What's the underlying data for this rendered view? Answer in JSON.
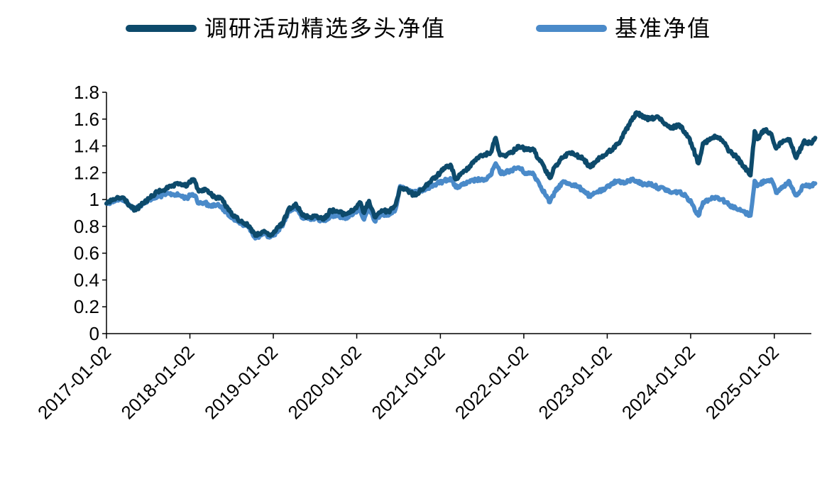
{
  "chart_data": {
    "type": "line",
    "title": "",
    "xlabel": "",
    "ylabel": "",
    "ylim": [
      0,
      1.8
    ],
    "yticks": [
      "0",
      "0.2",
      "0.4",
      "0.6",
      "0.8",
      "1",
      "1.2",
      "1.4",
      "1.6",
      "1.8"
    ],
    "xlim": [
      "2017-01-02",
      "2025-06-30"
    ],
    "xticks": [
      "2017-01-02",
      "2018-01-02",
      "2019-01-02",
      "2020-01-02",
      "2021-01-02",
      "2022-01-02",
      "2023-01-02",
      "2024-01-02",
      "2025-01-02"
    ],
    "grid": false,
    "legend_position": "top",
    "series": [
      {
        "name": "调研活动精选多头净值",
        "color": "#0d4a6b",
        "points": [
          [
            "2017-01-02",
            0.97
          ],
          [
            "2017-02-15",
            1.01
          ],
          [
            "2017-03-20",
            1.01
          ],
          [
            "2017-04-15",
            0.95
          ],
          [
            "2017-05-10",
            0.92
          ],
          [
            "2017-06-10",
            0.97
          ],
          [
            "2017-07-10",
            1.01
          ],
          [
            "2017-08-15",
            1.06
          ],
          [
            "2017-09-20",
            1.08
          ],
          [
            "2017-10-20",
            1.1
          ],
          [
            "2017-11-20",
            1.12
          ],
          [
            "2017-12-20",
            1.1
          ],
          [
            "2018-01-10",
            1.15
          ],
          [
            "2018-01-25",
            1.13
          ],
          [
            "2018-02-10",
            1.06
          ],
          [
            "2018-03-10",
            1.08
          ],
          [
            "2018-03-25",
            1.05
          ],
          [
            "2018-04-20",
            1.02
          ],
          [
            "2018-05-20",
            1.01
          ],
          [
            "2018-06-20",
            0.92
          ],
          [
            "2018-07-20",
            0.87
          ],
          [
            "2018-08-20",
            0.83
          ],
          [
            "2018-09-20",
            0.8
          ],
          [
            "2018-10-15",
            0.73
          ],
          [
            "2018-11-15",
            0.76
          ],
          [
            "2018-12-20",
            0.73
          ],
          [
            "2019-01-02",
            0.75
          ],
          [
            "2019-02-15",
            0.83
          ],
          [
            "2019-03-10",
            0.93
          ],
          [
            "2019-04-10",
            0.97
          ],
          [
            "2019-05-10",
            0.88
          ],
          [
            "2019-06-10",
            0.87
          ],
          [
            "2019-07-10",
            0.88
          ],
          [
            "2019-08-10",
            0.85
          ],
          [
            "2019-09-10",
            0.92
          ],
          [
            "2019-10-10",
            0.91
          ],
          [
            "2019-11-10",
            0.89
          ],
          [
            "2019-12-20",
            0.92
          ],
          [
            "2020-01-15",
            0.98
          ],
          [
            "2020-02-03",
            0.9
          ],
          [
            "2020-02-25",
            0.99
          ],
          [
            "2020-03-20",
            0.87
          ],
          [
            "2020-04-20",
            0.92
          ],
          [
            "2020-05-20",
            0.91
          ],
          [
            "2020-06-20",
            0.96
          ],
          [
            "2020-07-10",
            1.09
          ],
          [
            "2020-08-10",
            1.07
          ],
          [
            "2020-09-10",
            1.03
          ],
          [
            "2020-10-10",
            1.07
          ],
          [
            "2020-11-10",
            1.12
          ],
          [
            "2020-12-20",
            1.18
          ],
          [
            "2021-01-20",
            1.23
          ],
          [
            "2021-02-15",
            1.26
          ],
          [
            "2021-03-10",
            1.15
          ],
          [
            "2021-04-10",
            1.2
          ],
          [
            "2021-05-10",
            1.25
          ],
          [
            "2021-06-10",
            1.31
          ],
          [
            "2021-07-10",
            1.33
          ],
          [
            "2021-08-10",
            1.35
          ],
          [
            "2021-09-01",
            1.46
          ],
          [
            "2021-09-20",
            1.33
          ],
          [
            "2021-10-10",
            1.33
          ],
          [
            "2021-11-10",
            1.35
          ],
          [
            "2021-12-10",
            1.4
          ],
          [
            "2022-01-15",
            1.37
          ],
          [
            "2022-02-10",
            1.38
          ],
          [
            "2022-03-10",
            1.3
          ],
          [
            "2022-04-26",
            1.16
          ],
          [
            "2022-05-20",
            1.25
          ],
          [
            "2022-06-20",
            1.31
          ],
          [
            "2022-07-20",
            1.35
          ],
          [
            "2022-08-20",
            1.33
          ],
          [
            "2022-09-20",
            1.3
          ],
          [
            "2022-10-20",
            1.24
          ],
          [
            "2022-11-20",
            1.3
          ],
          [
            "2022-12-20",
            1.33
          ],
          [
            "2023-01-20",
            1.37
          ],
          [
            "2023-02-20",
            1.42
          ],
          [
            "2023-03-20",
            1.5
          ],
          [
            "2023-04-20",
            1.59
          ],
          [
            "2023-05-10",
            1.65
          ],
          [
            "2023-06-10",
            1.61
          ],
          [
            "2023-07-10",
            1.6
          ],
          [
            "2023-08-10",
            1.62
          ],
          [
            "2023-09-10",
            1.56
          ],
          [
            "2023-10-10",
            1.53
          ],
          [
            "2023-11-10",
            1.56
          ],
          [
            "2023-12-15",
            1.49
          ],
          [
            "2024-01-05",
            1.42
          ],
          [
            "2024-02-05",
            1.27
          ],
          [
            "2024-02-25",
            1.42
          ],
          [
            "2024-03-20",
            1.44
          ],
          [
            "2024-04-20",
            1.47
          ],
          [
            "2024-05-20",
            1.44
          ],
          [
            "2024-06-20",
            1.36
          ],
          [
            "2024-07-20",
            1.32
          ],
          [
            "2024-08-20",
            1.25
          ],
          [
            "2024-09-20",
            1.18
          ],
          [
            "2024-10-08",
            1.51
          ],
          [
            "2024-10-20",
            1.45
          ],
          [
            "2024-11-20",
            1.52
          ],
          [
            "2024-12-20",
            1.49
          ],
          [
            "2025-01-10",
            1.38
          ],
          [
            "2025-02-10",
            1.44
          ],
          [
            "2025-03-10",
            1.45
          ],
          [
            "2025-04-08",
            1.31
          ],
          [
            "2025-05-10",
            1.43
          ],
          [
            "2025-06-10",
            1.42
          ],
          [
            "2025-06-30",
            1.46
          ]
        ]
      },
      {
        "name": "基准净值",
        "color": "#4a8ac9",
        "points": [
          [
            "2017-01-02",
            0.97
          ],
          [
            "2017-02-15",
            1.0
          ],
          [
            "2017-03-20",
            1.0
          ],
          [
            "2017-04-15",
            0.95
          ],
          [
            "2017-05-10",
            0.93
          ],
          [
            "2017-06-10",
            0.97
          ],
          [
            "2017-07-10",
            1.0
          ],
          [
            "2017-08-15",
            1.02
          ],
          [
            "2017-09-20",
            1.04
          ],
          [
            "2017-10-20",
            1.04
          ],
          [
            "2017-11-20",
            1.03
          ],
          [
            "2017-12-20",
            1.01
          ],
          [
            "2018-01-10",
            1.04
          ],
          [
            "2018-01-25",
            1.03
          ],
          [
            "2018-02-10",
            0.97
          ],
          [
            "2018-03-10",
            0.98
          ],
          [
            "2018-03-25",
            0.95
          ],
          [
            "2018-04-20",
            0.96
          ],
          [
            "2018-05-20",
            0.95
          ],
          [
            "2018-06-20",
            0.88
          ],
          [
            "2018-07-20",
            0.85
          ],
          [
            "2018-08-20",
            0.81
          ],
          [
            "2018-09-20",
            0.79
          ],
          [
            "2018-10-15",
            0.71
          ],
          [
            "2018-11-15",
            0.74
          ],
          [
            "2018-12-20",
            0.72
          ],
          [
            "2019-01-02",
            0.73
          ],
          [
            "2019-02-15",
            0.82
          ],
          [
            "2019-03-10",
            0.91
          ],
          [
            "2019-04-10",
            0.94
          ],
          [
            "2019-05-10",
            0.86
          ],
          [
            "2019-06-10",
            0.86
          ],
          [
            "2019-07-10",
            0.86
          ],
          [
            "2019-08-10",
            0.84
          ],
          [
            "2019-09-10",
            0.88
          ],
          [
            "2019-10-10",
            0.88
          ],
          [
            "2019-11-10",
            0.86
          ],
          [
            "2019-12-20",
            0.9
          ],
          [
            "2020-01-15",
            0.93
          ],
          [
            "2020-02-03",
            0.85
          ],
          [
            "2020-02-25",
            0.93
          ],
          [
            "2020-03-20",
            0.84
          ],
          [
            "2020-04-20",
            0.89
          ],
          [
            "2020-05-20",
            0.88
          ],
          [
            "2020-06-20",
            0.93
          ],
          [
            "2020-07-10",
            1.1
          ],
          [
            "2020-08-10",
            1.08
          ],
          [
            "2020-09-10",
            1.05
          ],
          [
            "2020-10-10",
            1.07
          ],
          [
            "2020-11-10",
            1.09
          ],
          [
            "2020-12-20",
            1.12
          ],
          [
            "2021-01-20",
            1.14
          ],
          [
            "2021-02-15",
            1.16
          ],
          [
            "2021-03-10",
            1.09
          ],
          [
            "2021-04-10",
            1.11
          ],
          [
            "2021-05-10",
            1.13
          ],
          [
            "2021-06-10",
            1.15
          ],
          [
            "2021-07-10",
            1.14
          ],
          [
            "2021-08-10",
            1.18
          ],
          [
            "2021-09-01",
            1.27
          ],
          [
            "2021-09-20",
            1.2
          ],
          [
            "2021-10-10",
            1.2
          ],
          [
            "2021-11-10",
            1.22
          ],
          [
            "2021-12-10",
            1.24
          ],
          [
            "2022-01-15",
            1.19
          ],
          [
            "2022-02-10",
            1.2
          ],
          [
            "2022-03-10",
            1.12
          ],
          [
            "2022-04-26",
            0.98
          ],
          [
            "2022-05-20",
            1.06
          ],
          [
            "2022-06-20",
            1.13
          ],
          [
            "2022-07-20",
            1.12
          ],
          [
            "2022-08-20",
            1.1
          ],
          [
            "2022-09-20",
            1.07
          ],
          [
            "2022-10-20",
            1.02
          ],
          [
            "2022-11-20",
            1.06
          ],
          [
            "2022-12-20",
            1.07
          ],
          [
            "2023-01-20",
            1.12
          ],
          [
            "2023-02-20",
            1.14
          ],
          [
            "2023-03-20",
            1.12
          ],
          [
            "2023-04-20",
            1.15
          ],
          [
            "2023-05-10",
            1.14
          ],
          [
            "2023-06-10",
            1.11
          ],
          [
            "2023-07-10",
            1.12
          ],
          [
            "2023-08-10",
            1.09
          ],
          [
            "2023-09-10",
            1.08
          ],
          [
            "2023-10-10",
            1.05
          ],
          [
            "2023-11-10",
            1.06
          ],
          [
            "2023-12-15",
            1.02
          ],
          [
            "2024-01-05",
            0.98
          ],
          [
            "2024-02-05",
            0.88
          ],
          [
            "2024-02-25",
            0.98
          ],
          [
            "2024-03-20",
            1.0
          ],
          [
            "2024-04-20",
            1.02
          ],
          [
            "2024-05-20",
            1.0
          ],
          [
            "2024-06-20",
            0.96
          ],
          [
            "2024-07-20",
            0.93
          ],
          [
            "2024-08-20",
            0.91
          ],
          [
            "2024-09-20",
            0.88
          ],
          [
            "2024-10-08",
            1.14
          ],
          [
            "2024-10-20",
            1.1
          ],
          [
            "2024-11-20",
            1.14
          ],
          [
            "2024-12-20",
            1.15
          ],
          [
            "2025-01-10",
            1.05
          ],
          [
            "2025-02-10",
            1.1
          ],
          [
            "2025-03-10",
            1.13
          ],
          [
            "2025-04-08",
            1.03
          ],
          [
            "2025-05-10",
            1.1
          ],
          [
            "2025-06-10",
            1.1
          ],
          [
            "2025-06-30",
            1.12
          ]
        ]
      }
    ]
  }
}
